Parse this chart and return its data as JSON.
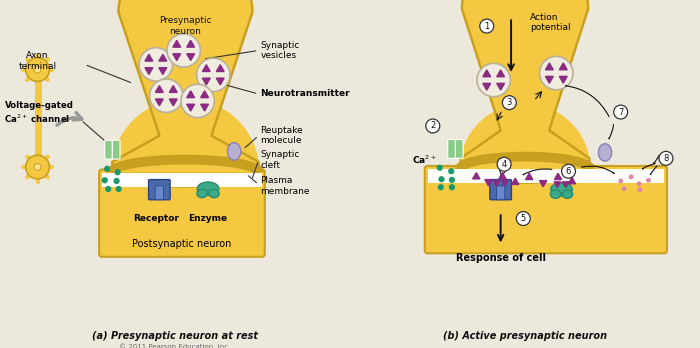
{
  "bg_color": "#ede8dc",
  "neuron_fill": "#f5c842",
  "neuron_edge": "#c8a020",
  "vesicle_fill": "#f0ede0",
  "vesicle_edge": "#b8b098",
  "triangle_color": "#8b2a82",
  "ca_dot_color": "#1a9a6c",
  "channel_color": "#88cc88",
  "receptor_color": "#4a6aaa",
  "enzyme_color": "#3aaa8a",
  "reuptake_color": "#b8b0d0",
  "arrow_color": "#222222",
  "title_a": "(a) Presynaptic neuron at rest",
  "title_b": "(b) Active presynaptic neuron",
  "copyright": "© 2011 Pearson Education, Inc."
}
